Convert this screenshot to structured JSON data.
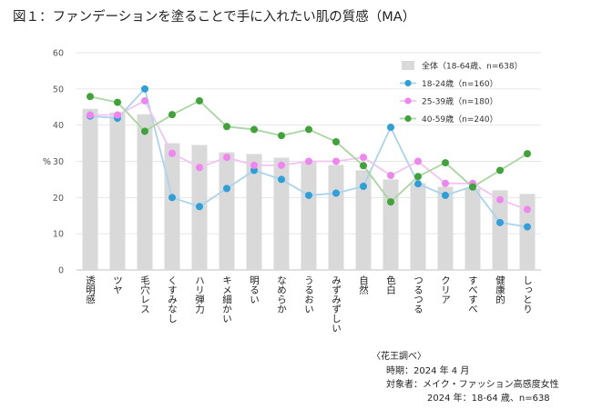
{
  "page": {
    "title": "図１：ファンデーションを塗ることで手に入れたい肌の質感（MA）",
    "notes": {
      "source": "〈花王調べ〉",
      "period": "時期：2024 年 4 月",
      "target": "対象者：メイク・ファッション高感度女性",
      "sample": "2024 年：18-64 歳、n=638"
    }
  },
  "chart_data": {
    "type": "bar",
    "title": "",
    "xlabel": "",
    "ylabel": "%",
    "ylim": [
      0,
      60
    ],
    "yticks": [
      0,
      10,
      20,
      30,
      40,
      50,
      60
    ],
    "legend_position": "top-right",
    "categories": [
      "透明感",
      "ツヤ",
      "毛穴レス",
      "くすみなし",
      "ハリ弾力",
      "キメ細かい",
      "明るい",
      "なめらか",
      "うるおい",
      "みずみずしい",
      "自然",
      "色白",
      "つるつる",
      "クリア",
      "すべすべ",
      "健康的",
      "しっとり"
    ],
    "series": [
      {
        "name": "全体（18-64歳、n=638）",
        "kind": "bar",
        "color": "#d9d9d9",
        "values": [
          44.5,
          43.5,
          43.0,
          35.0,
          34.5,
          32.5,
          32.0,
          31.0,
          30.0,
          29.0,
          27.5,
          25.0,
          24.0,
          23.0,
          22.5,
          22.0,
          21.0
        ]
      },
      {
        "name": "18-24歳（n=160）",
        "kind": "line",
        "color": "#2e9fd8",
        "line_color": "#a9d4ee",
        "values": [
          42.5,
          41.9,
          50.0,
          20.0,
          17.5,
          22.5,
          27.5,
          25.0,
          20.6,
          21.2,
          23.1,
          39.4,
          23.8,
          20.6,
          23.1,
          13.1,
          11.9
        ]
      },
      {
        "name": "25-39歳（n=180）",
        "kind": "line",
        "color": "#ef86ef",
        "line_color": "#f3c3f3",
        "values": [
          42.8,
          42.8,
          46.7,
          32.2,
          28.3,
          31.1,
          28.9,
          28.9,
          30.0,
          30.0,
          31.1,
          26.1,
          30.0,
          23.9,
          23.9,
          19.4,
          16.7
        ]
      },
      {
        "name": "40-59歳（n=240）",
        "kind": "line",
        "color": "#3fa33a",
        "line_color": "#a8d6a0",
        "values": [
          47.9,
          46.3,
          38.3,
          42.9,
          46.7,
          39.6,
          38.8,
          37.1,
          38.8,
          35.4,
          28.8,
          18.8,
          25.8,
          29.6,
          22.9,
          27.5,
          32.1
        ]
      }
    ]
  }
}
